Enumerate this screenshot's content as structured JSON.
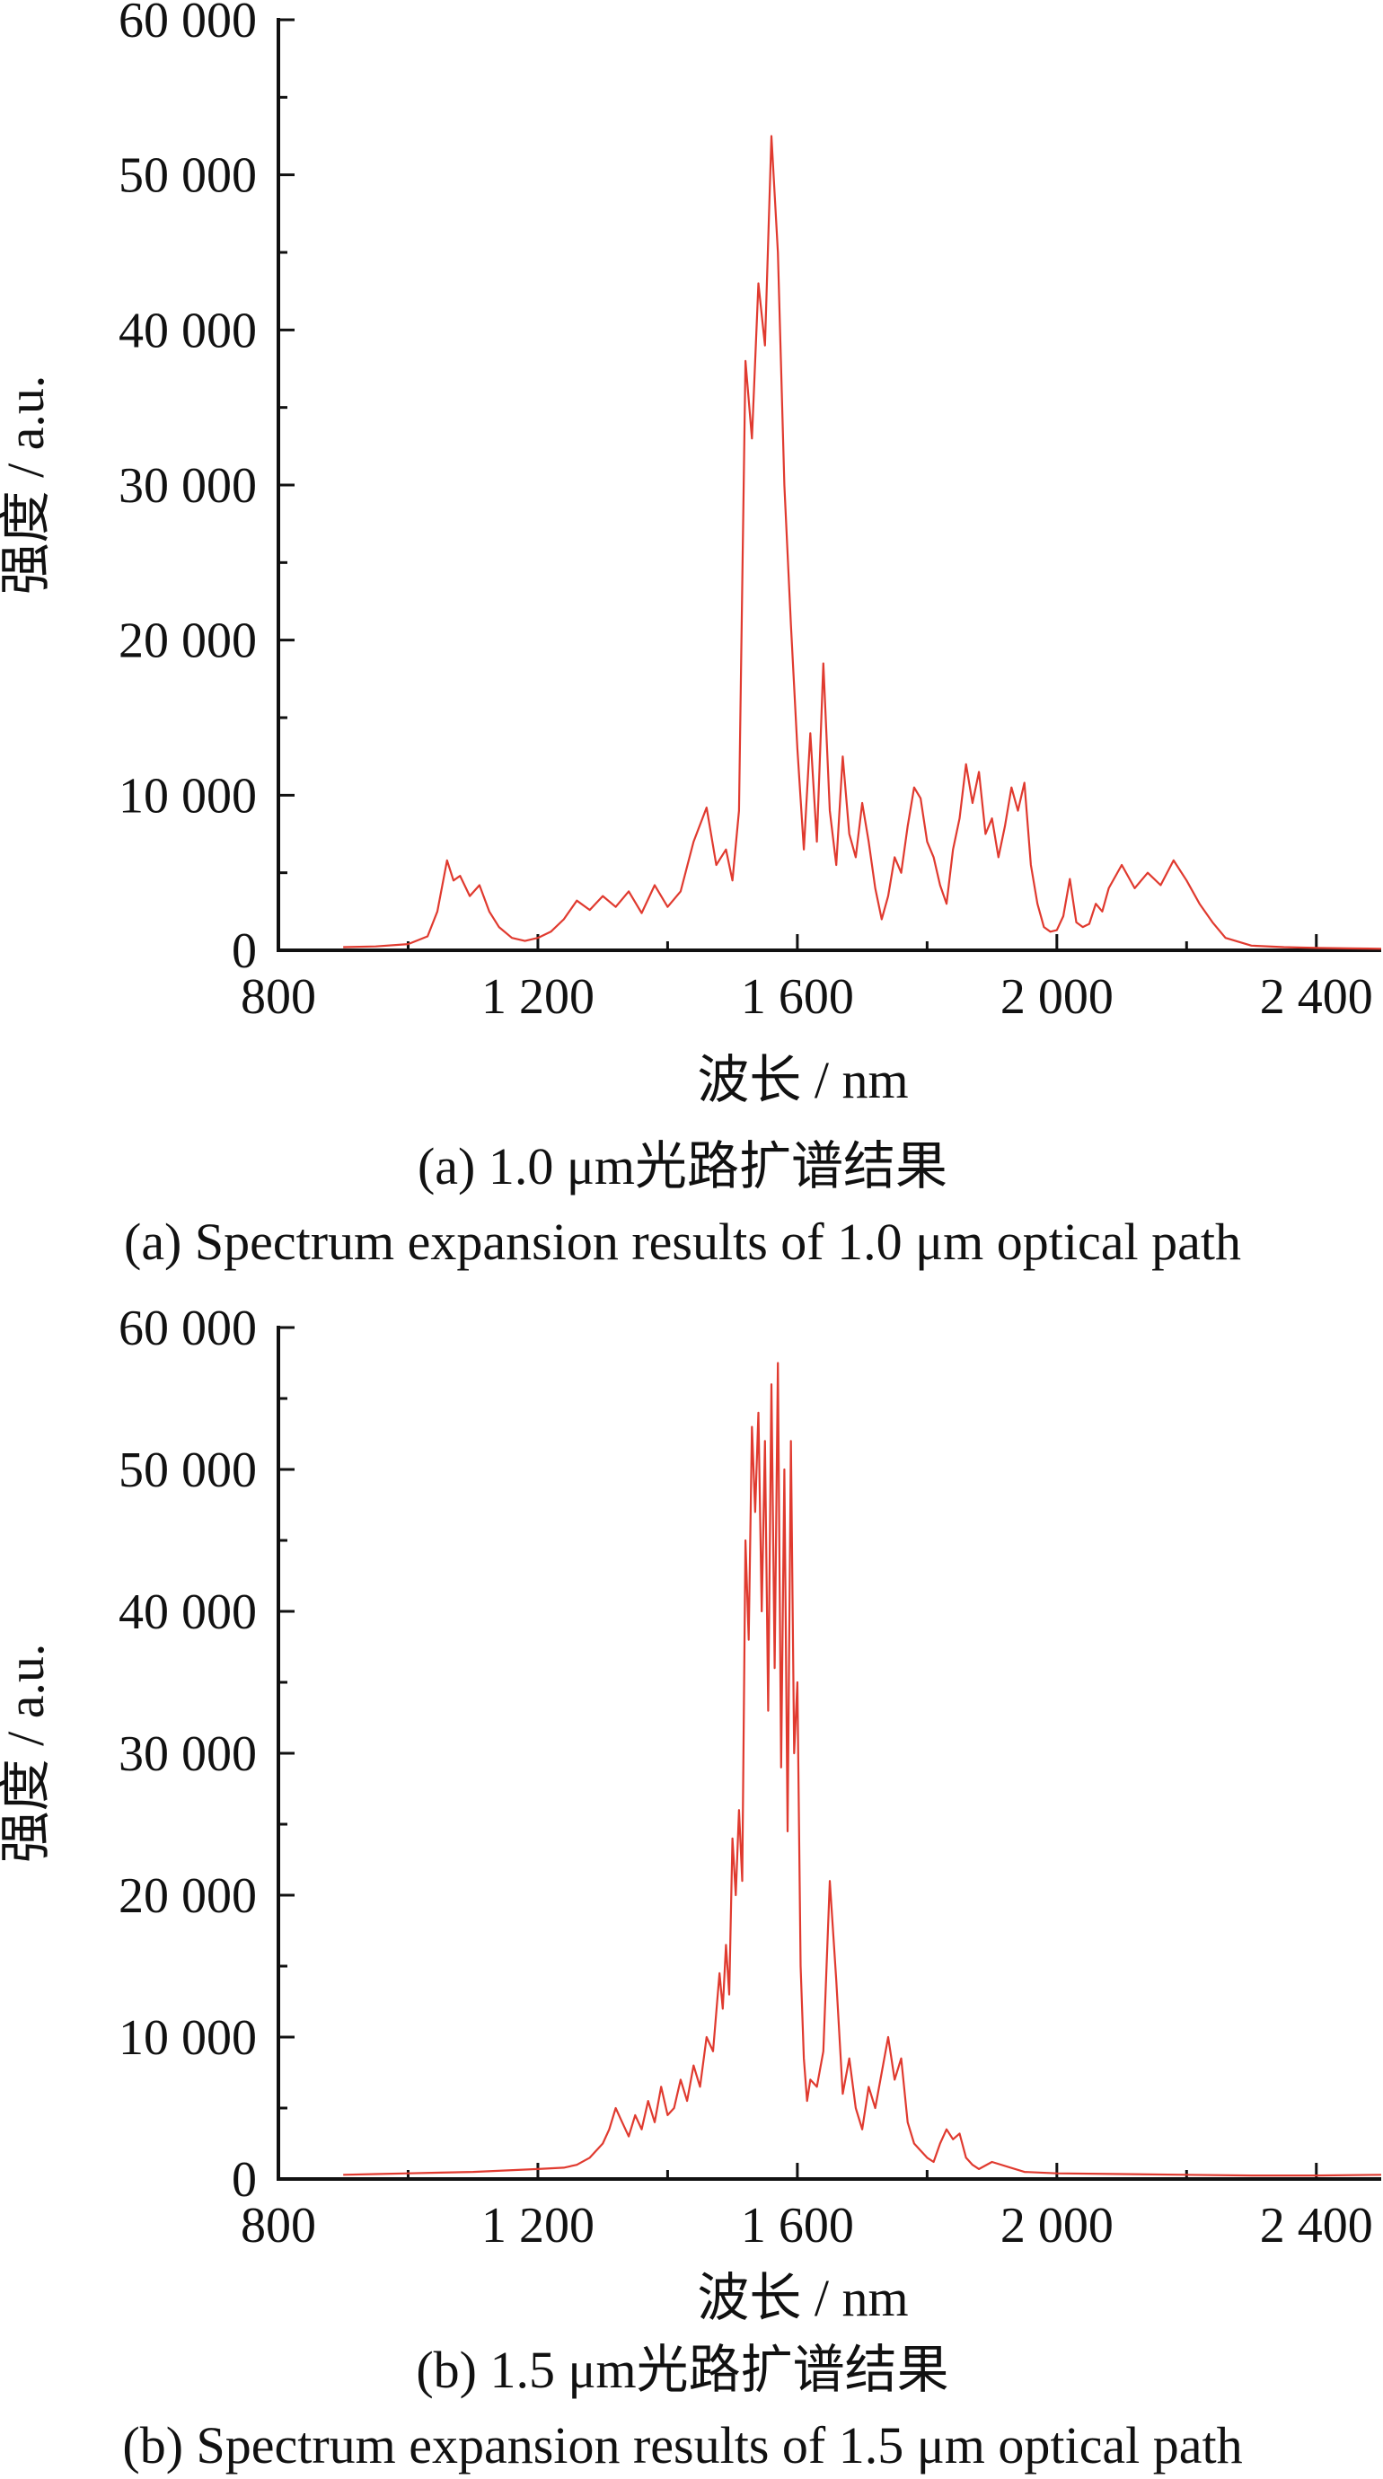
{
  "chart_data": [
    {
      "type": "line",
      "title": "",
      "xlabel": "波长 / nm",
      "ylabel": "强度 / a.u.",
      "xlim": [
        800,
        2500
      ],
      "ylim": [
        0,
        60000
      ],
      "x_ticks": [
        800,
        1200,
        1600,
        2000,
        2400
      ],
      "x_tick_labels": [
        "800",
        "1 200",
        "1 600",
        "2 000",
        "2 400"
      ],
      "y_ticks": [
        0,
        10000,
        20000,
        30000,
        40000,
        50000,
        60000
      ],
      "y_tick_labels": [
        "0",
        "10 000",
        "20 000",
        "30 000",
        "40 000",
        "50 000",
        "60 000"
      ],
      "line_color": "#e03a2f",
      "caption_cn": "(a) 1.0 μm光路扩谱结果",
      "caption_en": "(a) Spectrum expansion results of 1.0 μm optical path",
      "series": [
        {
          "x": [
            900,
            950,
            1000,
            1030,
            1045,
            1060,
            1070,
            1080,
            1095,
            1110,
            1125,
            1140,
            1160,
            1180,
            1200,
            1220,
            1240,
            1260,
            1280,
            1300,
            1320,
            1340,
            1360,
            1380,
            1400,
            1420,
            1440,
            1460,
            1475,
            1490,
            1500,
            1510,
            1520,
            1530,
            1540,
            1550,
            1560,
            1570,
            1580,
            1590,
            1600,
            1610,
            1620,
            1630,
            1640,
            1650,
            1660,
            1670,
            1680,
            1690,
            1700,
            1710,
            1720,
            1730,
            1740,
            1750,
            1760,
            1770,
            1780,
            1790,
            1800,
            1810,
            1820,
            1830,
            1840,
            1850,
            1860,
            1870,
            1880,
            1890,
            1900,
            1910,
            1920,
            1930,
            1940,
            1950,
            1960,
            1970,
            1980,
            1990,
            2000,
            2010,
            2020,
            2030,
            2040,
            2050,
            2060,
            2070,
            2080,
            2100,
            2120,
            2140,
            2160,
            2180,
            2200,
            2220,
            2240,
            2260,
            2300,
            2350,
            2400,
            2450,
            2500
          ],
          "y": [
            200,
            250,
            400,
            900,
            2500,
            5800,
            4500,
            4800,
            3500,
            4200,
            2500,
            1500,
            800,
            600,
            800,
            1200,
            2000,
            3200,
            2600,
            3500,
            2800,
            3800,
            2400,
            4200,
            2800,
            3800,
            7000,
            9200,
            5500,
            6500,
            4500,
            9000,
            38000,
            33000,
            43000,
            39000,
            52500,
            45000,
            30000,
            21000,
            13000,
            6500,
            14000,
            7000,
            18500,
            9000,
            5500,
            12500,
            7500,
            6000,
            9500,
            7000,
            4000,
            2000,
            3500,
            6000,
            5000,
            8000,
            10500,
            9800,
            7000,
            6000,
            4200,
            3000,
            6500,
            8500,
            12000,
            9500,
            11500,
            7500,
            8500,
            6000,
            8000,
            10500,
            9000,
            10800,
            5500,
            3000,
            1500,
            1200,
            1300,
            2200,
            4600,
            1800,
            1500,
            1700,
            3000,
            2500,
            4000,
            5500,
            4000,
            5000,
            4200,
            5800,
            4500,
            3000,
            1800,
            800,
            300,
            200,
            150,
            120,
            100
          ]
        }
      ]
    },
    {
      "type": "line",
      "title": "",
      "xlabel": "波长 / nm",
      "ylabel": "强度 / a.u.",
      "xlim": [
        800,
        2500
      ],
      "ylim": [
        0,
        60000
      ],
      "x_ticks": [
        800,
        1200,
        1600,
        2000,
        2400
      ],
      "x_tick_labels": [
        "800",
        "1 200",
        "1 600",
        "2 000",
        "2 400"
      ],
      "y_ticks": [
        0,
        10000,
        20000,
        30000,
        40000,
        50000,
        60000
      ],
      "y_tick_labels": [
        "0",
        "10 000",
        "20 000",
        "30 000",
        "40 000",
        "50 000",
        "60 000"
      ],
      "line_color": "#e03a2f",
      "caption_cn": "(b) 1.5 μm光路扩谱结果",
      "caption_en": "(b) Spectrum expansion results of 1.5 μm optical path",
      "series": [
        {
          "x": [
            900,
            950,
            1000,
            1050,
            1100,
            1150,
            1200,
            1240,
            1260,
            1280,
            1300,
            1310,
            1320,
            1330,
            1340,
            1350,
            1360,
            1370,
            1380,
            1390,
            1400,
            1410,
            1420,
            1430,
            1440,
            1450,
            1460,
            1470,
            1480,
            1485,
            1490,
            1495,
            1500,
            1505,
            1510,
            1515,
            1520,
            1525,
            1530,
            1535,
            1540,
            1545,
            1550,
            1555,
            1560,
            1565,
            1570,
            1575,
            1580,
            1585,
            1590,
            1595,
            1600,
            1605,
            1610,
            1615,
            1620,
            1630,
            1640,
            1650,
            1660,
            1670,
            1680,
            1690,
            1700,
            1710,
            1720,
            1730,
            1740,
            1750,
            1760,
            1770,
            1780,
            1790,
            1800,
            1810,
            1820,
            1830,
            1840,
            1850,
            1860,
            1870,
            1880,
            1900,
            1950,
            2000,
            2100,
            2200,
            2300,
            2400,
            2500
          ],
          "y": [
            300,
            350,
            400,
            450,
            500,
            600,
            700,
            800,
            1000,
            1500,
            2500,
            3500,
            5000,
            4000,
            3000,
            4500,
            3500,
            5500,
            4000,
            6500,
            4500,
            5000,
            7000,
            5500,
            8000,
            6500,
            10000,
            9000,
            14500,
            12000,
            16500,
            13000,
            24000,
            20000,
            26000,
            21000,
            45000,
            38000,
            53000,
            47000,
            54000,
            40000,
            52000,
            33000,
            56000,
            36000,
            57500,
            29000,
            50000,
            24500,
            52000,
            30000,
            35000,
            15000,
            8500,
            5500,
            7000,
            6500,
            9000,
            21000,
            14000,
            6000,
            8500,
            5000,
            3500,
            6500,
            5000,
            7500,
            10000,
            7000,
            8500,
            4000,
            2500,
            2000,
            1500,
            1200,
            2500,
            3500,
            2800,
            3200,
            1500,
            1000,
            700,
            1200,
            500,
            400,
            350,
            300,
            250,
            250,
            300
          ]
        }
      ]
    }
  ]
}
